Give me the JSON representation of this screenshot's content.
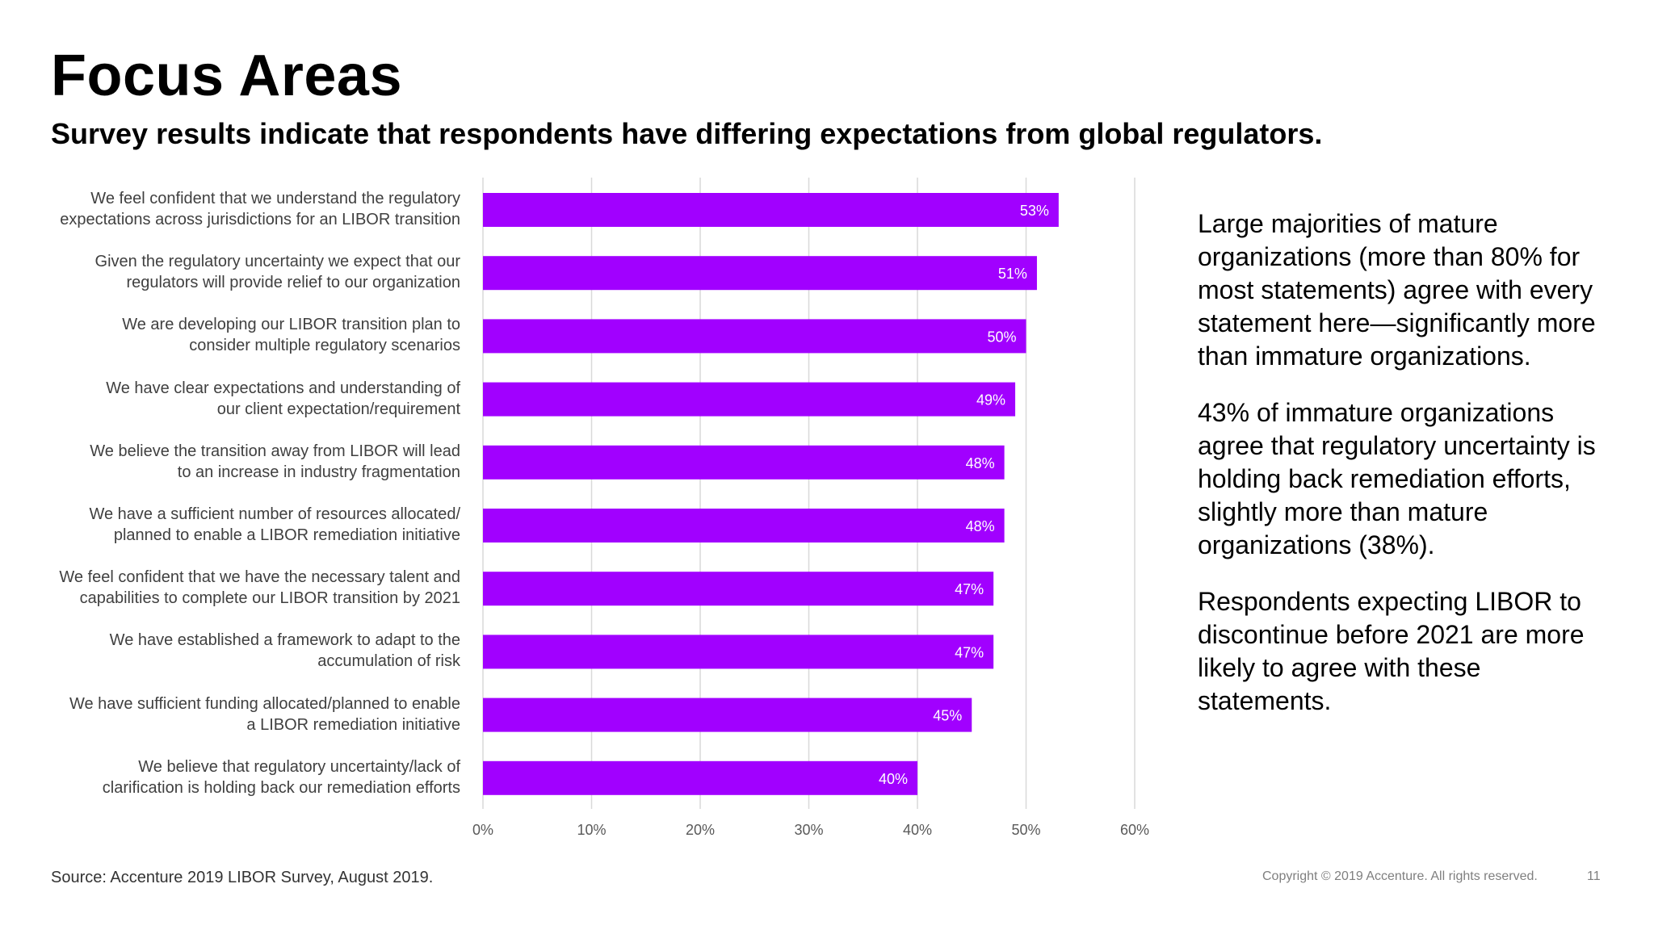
{
  "slide": {
    "title": "Focus Areas",
    "subtitle": "Survey results indicate that respondents have differing expectations from global regulators.",
    "source": "Source: Accenture 2019 LIBOR Survey, August 2019.",
    "copyright": "Copyright © 2019 Accenture. All rights reserved.",
    "page_number": "11",
    "side_paragraphs": [
      "Large majorities of mature organizations (more than 80% for most statements) agree with every statement here—significantly more than immature organizations.",
      "43% of immature organizations agree that regulatory uncertainty is holding back remediation efforts, slightly more than mature organizations (38%).",
      "Respondents expecting LIBOR to discontinue before 2021 are more likely to agree with these statements."
    ]
  },
  "chart_data": {
    "type": "bar",
    "orientation": "horizontal",
    "categories": [
      [
        "We feel confident that we understand the regulatory",
        "expectations across jurisdictions for an LIBOR transition"
      ],
      [
        "Given the regulatory uncertainty we expect that our",
        "regulators will provide relief to our organization"
      ],
      [
        "We are developing our LIBOR transition plan to",
        "consider multiple regulatory scenarios"
      ],
      [
        "We have clear expectations and understanding of",
        "our client expectation/requirement"
      ],
      [
        "We believe the transition away from LIBOR will lead",
        "to an increase in industry fragmentation"
      ],
      [
        "We have a sufficient number of resources allocated/",
        "planned to enable a LIBOR remediation initiative"
      ],
      [
        "We feel confident that we have the necessary talent and",
        "capabilities to complete our LIBOR transition by 2021"
      ],
      [
        "We have established a framework to adapt to the",
        "accumulation of risk"
      ],
      [
        "We have sufficient funding allocated/planned to enable",
        "a LIBOR remediation initiative"
      ],
      [
        "We believe that regulatory uncertainty/lack of",
        "clarification is holding back our remediation efforts"
      ]
    ],
    "values": [
      53,
      51,
      50,
      49,
      48,
      48,
      47,
      47,
      45,
      40
    ],
    "data_labels": [
      "53%",
      "51%",
      "50%",
      "49%",
      "48%",
      "48%",
      "47%",
      "47%",
      "45%",
      "40%"
    ],
    "x_ticks": [
      "0%",
      "10%",
      "20%",
      "30%",
      "40%",
      "50%",
      "60%"
    ],
    "xlim": [
      0,
      60
    ],
    "grid": true,
    "bar_color": "#a100ff",
    "label_color": "#ffffff"
  }
}
